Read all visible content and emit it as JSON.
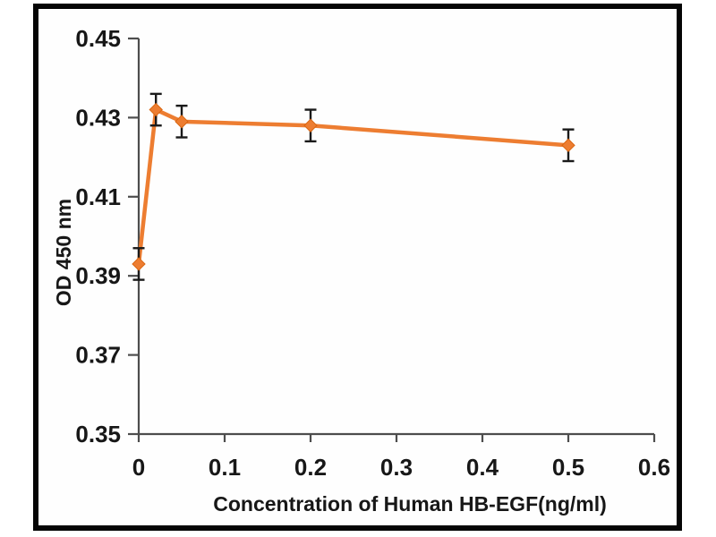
{
  "chart_data": {
    "type": "line",
    "xlabel": "Concentration of Human HB-EGF(ng/ml)",
    "ylabel": "OD 450 nm",
    "xlim": [
      0,
      0.6
    ],
    "ylim": [
      0.35,
      0.45
    ],
    "x_ticks": [
      0,
      0.1,
      0.2,
      0.3,
      0.4,
      0.5,
      0.6
    ],
    "x_tick_labels": [
      "0",
      "0.1",
      "0.2",
      "0.3",
      "0.4",
      "0.5",
      "0.6"
    ],
    "y_ticks": [
      0.35,
      0.37,
      0.39,
      0.41,
      0.43,
      0.45
    ],
    "y_tick_labels": [
      "0.35",
      "0.37",
      "0.39",
      "0.41",
      "0.43",
      "0.45"
    ],
    "grid": false,
    "legend": false,
    "series": [
      {
        "marker": "diamond",
        "color": "#ED7D31",
        "marker_stroke": "#D9650F",
        "x": [
          0,
          0.02,
          0.05,
          0.2,
          0.5
        ],
        "y": [
          0.393,
          0.432,
          0.429,
          0.428,
          0.423
        ],
        "y_error": [
          0.004,
          0.004,
          0.004,
          0.004,
          0.004
        ]
      }
    ],
    "error_bar_color": "#1a1a1a",
    "axis_color": "#4d4d4d",
    "frame_color": "#050505",
    "background": "#ffffff"
  }
}
